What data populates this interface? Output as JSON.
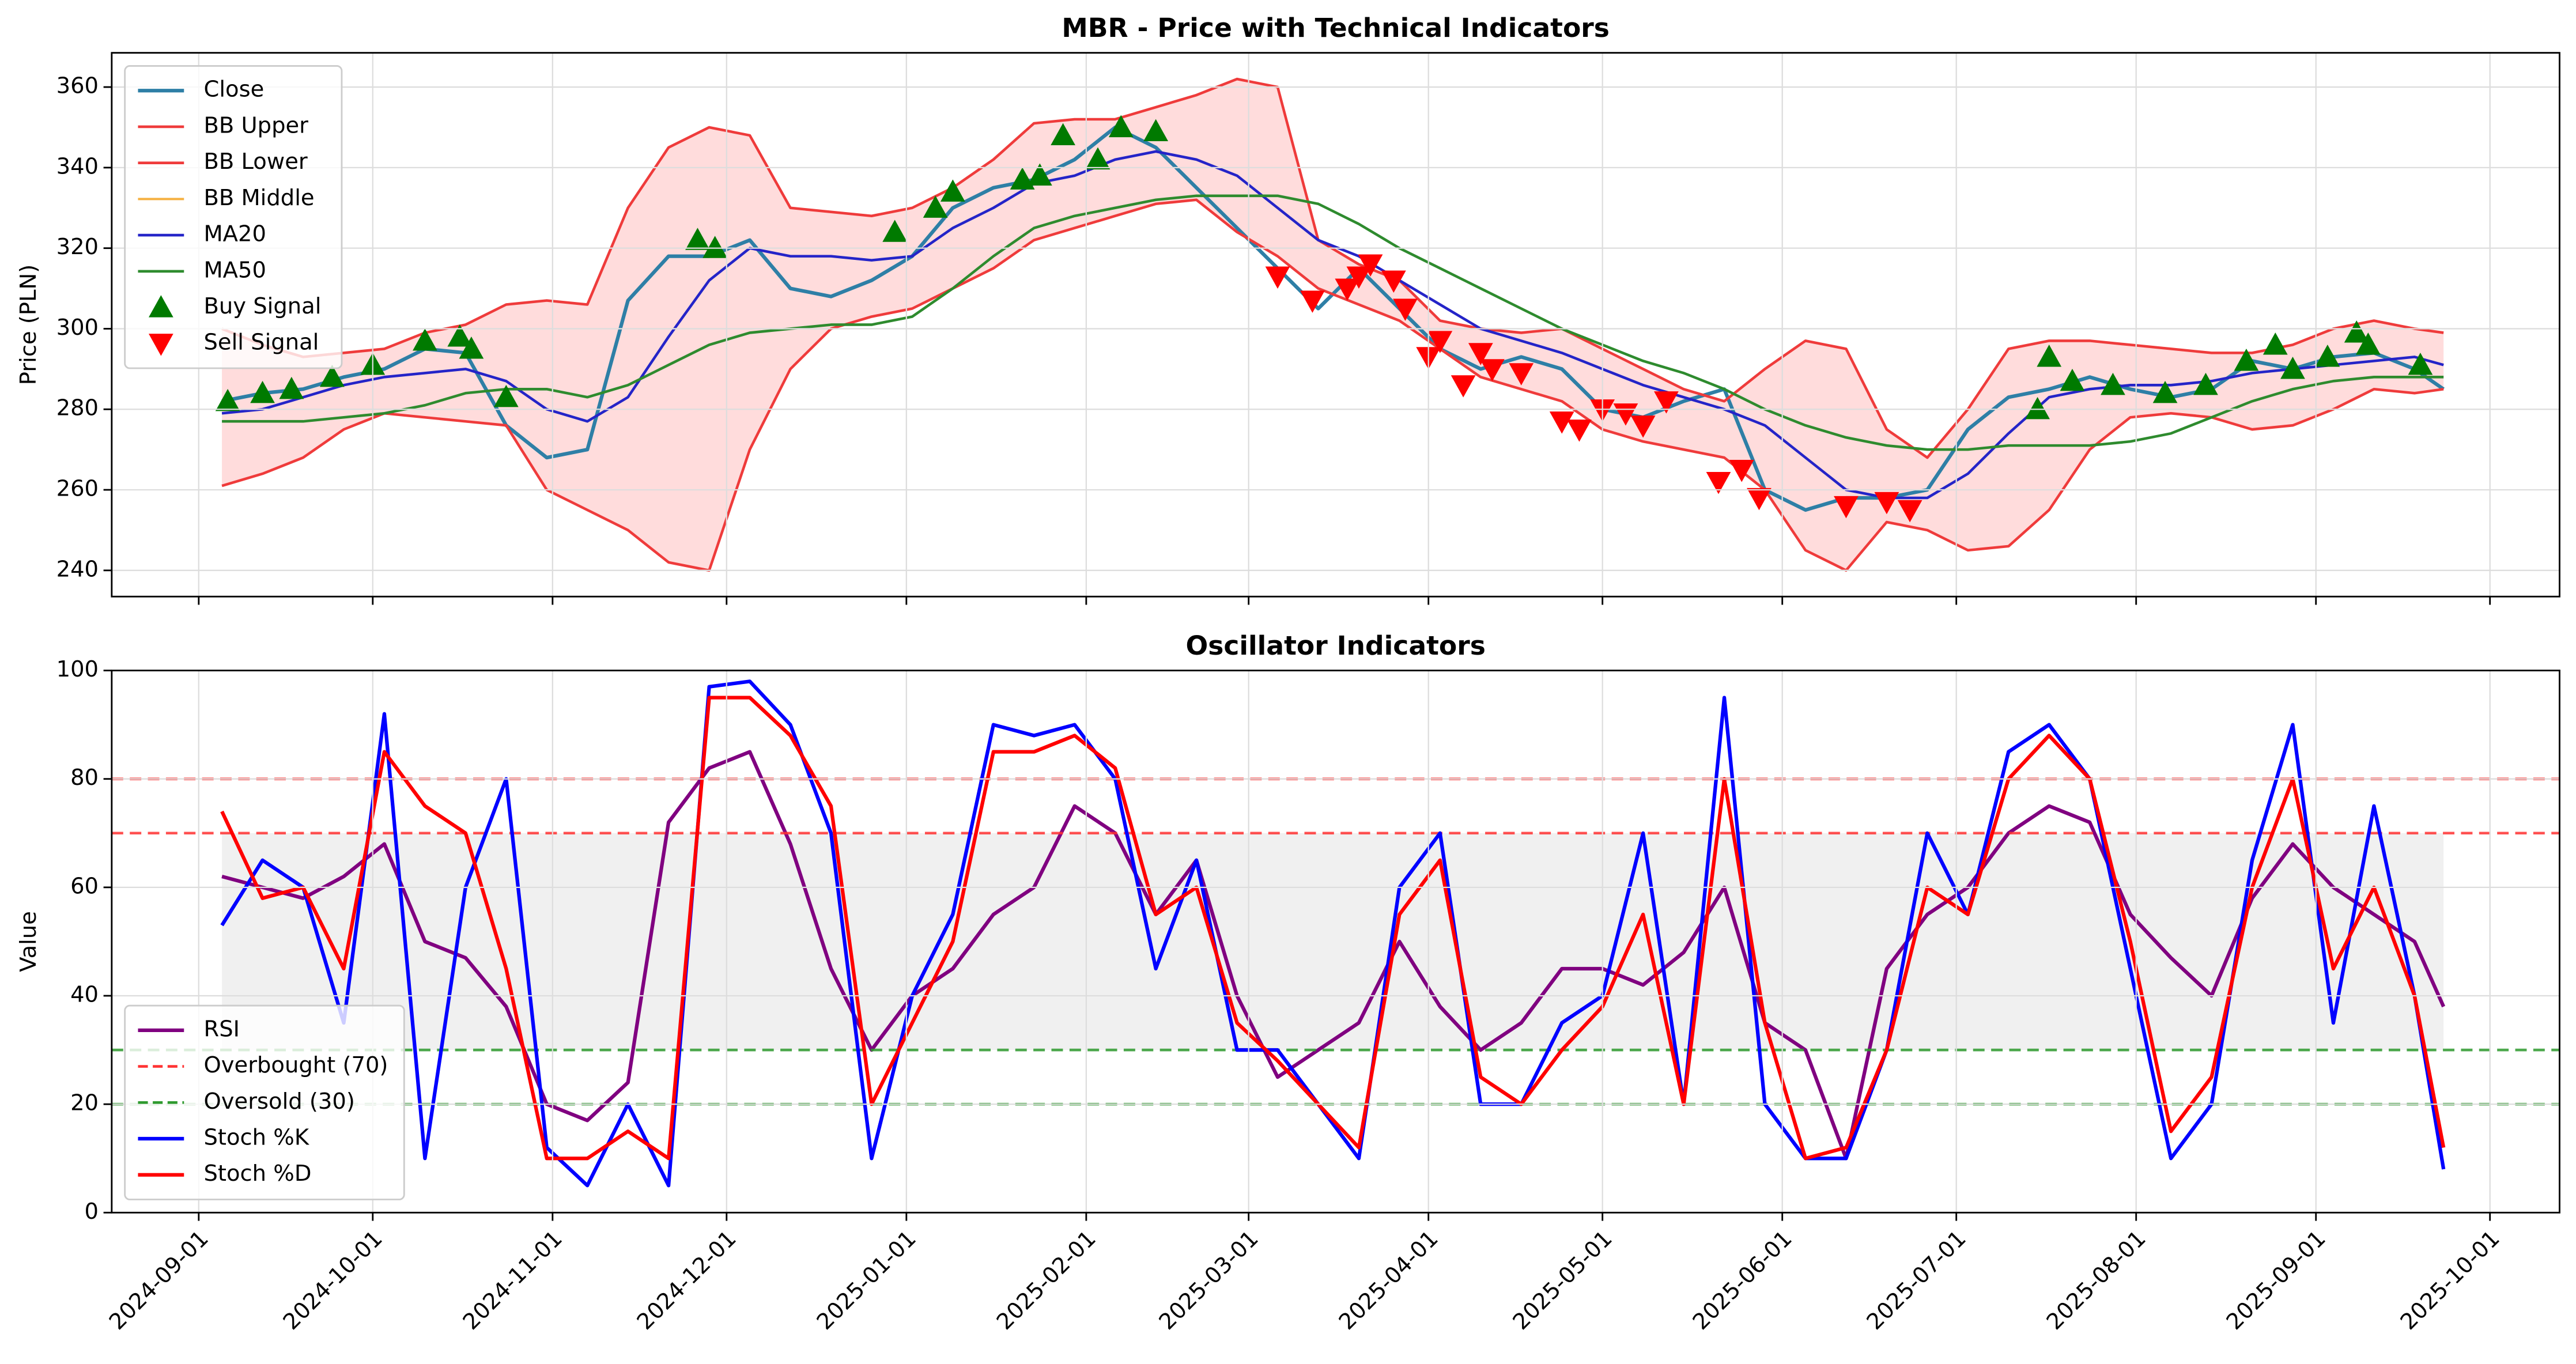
{
  "chart_data": [
    {
      "type": "line",
      "title": "MBR - Price with Technical Indicators",
      "y_label": "Price (PLN)",
      "x": [
        "2024-09-05",
        "2024-09-12",
        "2024-09-19",
        "2024-09-26",
        "2024-10-03",
        "2024-10-10",
        "2024-10-17",
        "2024-10-24",
        "2024-10-31",
        "2024-11-07",
        "2024-11-14",
        "2024-11-21",
        "2024-11-28",
        "2024-12-05",
        "2024-12-12",
        "2024-12-19",
        "2024-12-26",
        "2025-01-02",
        "2025-01-09",
        "2025-01-16",
        "2025-01-23",
        "2025-01-30",
        "2025-02-06",
        "2025-02-13",
        "2025-02-20",
        "2025-02-27",
        "2025-03-06",
        "2025-03-13",
        "2025-03-20",
        "2025-03-27",
        "2025-04-03",
        "2025-04-10",
        "2025-04-17",
        "2025-04-24",
        "2025-05-01",
        "2025-05-08",
        "2025-05-15",
        "2025-05-22",
        "2025-05-29",
        "2025-06-05",
        "2025-06-12",
        "2025-06-19",
        "2025-06-26",
        "2025-07-03",
        "2025-07-10",
        "2025-07-17",
        "2025-07-24",
        "2025-07-31",
        "2025-08-07",
        "2025-08-14",
        "2025-08-21",
        "2025-08-28",
        "2025-09-04",
        "2025-09-11",
        "2025-09-18",
        "2025-09-23"
      ],
      "series": [
        {
          "name": "Close",
          "type": "line",
          "color": "#2e7fa6",
          "width": 2.2,
          "values": [
            282,
            284,
            285,
            288,
            290,
            295,
            294,
            276,
            268,
            270,
            307,
            318,
            318,
            322,
            310,
            308,
            312,
            318,
            330,
            335,
            337,
            342,
            350,
            345,
            335,
            325,
            315,
            305,
            315,
            305,
            295,
            290,
            293,
            290,
            280,
            278,
            282,
            285,
            260,
            255,
            258,
            258,
            260,
            275,
            283,
            285,
            288,
            285,
            283,
            285,
            292,
            290,
            293,
            294,
            290,
            285
          ]
        },
        {
          "name": "BB Upper",
          "type": "line",
          "color": "#ef3b3b",
          "width": 1.6,
          "values": [
            300,
            296,
            293,
            294,
            295,
            299,
            301,
            306,
            307,
            306,
            330,
            345,
            350,
            348,
            330,
            329,
            328,
            330,
            335,
            342,
            351,
            352,
            352,
            355,
            358,
            362,
            360,
            322,
            316,
            312,
            302,
            300,
            299,
            300,
            295,
            290,
            285,
            282,
            290,
            297,
            295,
            275,
            268,
            280,
            295,
            297,
            297,
            296,
            295,
            294,
            294,
            296,
            300,
            302,
            300,
            299
          ]
        },
        {
          "name": "BB Lower",
          "type": "line",
          "color": "#ef3b3b",
          "width": 1.6,
          "values": [
            261,
            264,
            268,
            275,
            279,
            278,
            277,
            276,
            260,
            255,
            250,
            242,
            240,
            270,
            290,
            300,
            303,
            305,
            310,
            315,
            322,
            325,
            328,
            331,
            332,
            324,
            318,
            310,
            306,
            302,
            295,
            288,
            285,
            282,
            275,
            272,
            270,
            268,
            260,
            245,
            240,
            252,
            250,
            245,
            246,
            255,
            270,
            278,
            279,
            278,
            275,
            276,
            280,
            285,
            284,
            285
          ]
        },
        {
          "name": "BB Middle",
          "type": "line",
          "color": "#f5b041",
          "width": 1.4,
          "values": [
            279,
            280,
            283,
            286,
            288,
            289,
            290,
            287,
            280,
            277,
            283,
            298,
            312,
            320,
            318,
            318,
            317,
            318,
            325,
            330,
            336,
            338,
            342,
            344,
            342,
            338,
            330,
            322,
            318,
            312,
            306,
            300,
            297,
            294,
            290,
            286,
            283,
            280,
            276,
            268,
            260,
            258,
            258,
            264,
            274,
            283,
            285,
            286,
            286,
            287,
            289,
            290,
            291,
            292,
            293,
            291
          ]
        },
        {
          "name": "MA20",
          "type": "line",
          "color": "#2424c8",
          "width": 1.6,
          "values": [
            279,
            280,
            283,
            286,
            288,
            289,
            290,
            287,
            280,
            277,
            283,
            298,
            312,
            320,
            318,
            318,
            317,
            318,
            325,
            330,
            336,
            338,
            342,
            344,
            342,
            338,
            330,
            322,
            318,
            312,
            306,
            300,
            297,
            294,
            290,
            286,
            283,
            280,
            276,
            268,
            260,
            258,
            258,
            264,
            274,
            283,
            285,
            286,
            286,
            287,
            289,
            290,
            291,
            292,
            293,
            291
          ]
        },
        {
          "name": "MA50",
          "type": "line",
          "color": "#2e8b2e",
          "width": 1.6,
          "values": [
            277,
            277,
            277,
            278,
            279,
            281,
            284,
            285,
            285,
            283,
            286,
            291,
            296,
            299,
            300,
            301,
            301,
            303,
            310,
            318,
            325,
            328,
            330,
            332,
            333,
            333,
            333,
            331,
            326,
            320,
            315,
            310,
            305,
            300,
            296,
            292,
            289,
            285,
            280,
            276,
            273,
            271,
            270,
            270,
            271,
            271,
            271,
            272,
            274,
            278,
            282,
            285,
            287,
            288,
            288,
            288
          ]
        },
        {
          "name": "Buy Signal",
          "type": "scatter",
          "marker": "up",
          "color": "#007a00",
          "x": [
            "2024-09-06",
            "2024-09-12",
            "2024-09-17",
            "2024-09-24",
            "2024-10-01",
            "2024-10-10",
            "2024-10-16",
            "2024-10-18",
            "2024-10-24",
            "2024-11-26",
            "2024-11-29",
            "2024-12-30",
            "2025-01-06",
            "2025-01-09",
            "2025-01-21",
            "2025-01-24",
            "2025-01-28",
            "2025-02-03",
            "2025-02-07",
            "2025-02-13",
            "2025-07-15",
            "2025-07-17",
            "2025-07-21",
            "2025-07-28",
            "2025-08-06",
            "2025-08-13",
            "2025-08-20",
            "2025-08-25",
            "2025-08-28",
            "2025-09-03",
            "2025-09-08",
            "2025-09-10",
            "2025-09-19"
          ],
          "values": [
            282,
            284,
            285,
            288,
            291,
            297,
            298,
            295,
            283,
            322,
            320,
            324,
            330,
            334,
            337,
            338,
            348,
            342,
            350,
            349,
            280,
            293,
            287,
            286,
            284,
            286,
            292,
            296,
            290,
            293,
            299,
            296,
            291
          ]
        },
        {
          "name": "Sell Signal",
          "type": "scatter",
          "marker": "down",
          "color": "#ff0000",
          "x": [
            "2025-03-06",
            "2025-03-12",
            "2025-03-18",
            "2025-03-20",
            "2025-03-22",
            "2025-03-26",
            "2025-03-28",
            "2025-04-01",
            "2025-04-03",
            "2025-04-07",
            "2025-04-10",
            "2025-04-12",
            "2025-04-17",
            "2025-04-24",
            "2025-04-27",
            "2025-05-01",
            "2025-05-05",
            "2025-05-08",
            "2025-05-12",
            "2025-05-21",
            "2025-05-25",
            "2025-05-28",
            "2025-06-12",
            "2025-06-19",
            "2025-06-23"
          ],
          "values": [
            313,
            307,
            310,
            313,
            316,
            312,
            305,
            293,
            297,
            286,
            294,
            290,
            289,
            277,
            275,
            280,
            279,
            276,
            282,
            262,
            265,
            258,
            256,
            257,
            255
          ]
        }
      ],
      "fill_between": [
        1,
        2
      ],
      "fill_color": "#ffdcdc",
      "xlim": [
        "2024-08-17",
        "2025-10-13"
      ],
      "xticks": [
        "2024-09-01",
        "2024-10-01",
        "2024-11-01",
        "2024-12-01",
        "2025-01-01",
        "2025-02-01",
        "2025-03-01",
        "2025-04-01",
        "2025-05-01",
        "2025-06-01",
        "2025-07-01",
        "2025-08-01",
        "2025-09-01",
        "2025-10-01"
      ],
      "ylim": [
        233.5,
        368.5
      ],
      "yticks": [
        240,
        260,
        280,
        300,
        320,
        340,
        360
      ],
      "grid": true,
      "legend": "upper left"
    },
    {
      "type": "line",
      "title": "Oscillator Indicators",
      "y_label": "Value",
      "x": [
        "2024-09-05",
        "2024-09-12",
        "2024-09-19",
        "2024-09-26",
        "2024-10-03",
        "2024-10-10",
        "2024-10-17",
        "2024-10-24",
        "2024-10-31",
        "2024-11-07",
        "2024-11-14",
        "2024-11-21",
        "2024-11-28",
        "2024-12-05",
        "2024-12-12",
        "2024-12-19",
        "2024-12-26",
        "2025-01-02",
        "2025-01-09",
        "2025-01-16",
        "2025-01-23",
        "2025-01-30",
        "2025-02-06",
        "2025-02-13",
        "2025-02-20",
        "2025-02-27",
        "2025-03-06",
        "2025-03-13",
        "2025-03-20",
        "2025-03-27",
        "2025-04-03",
        "2025-04-10",
        "2025-04-17",
        "2025-04-24",
        "2025-05-01",
        "2025-05-08",
        "2025-05-15",
        "2025-05-22",
        "2025-05-29",
        "2025-06-05",
        "2025-06-12",
        "2025-06-19",
        "2025-06-26",
        "2025-07-03",
        "2025-07-10",
        "2025-07-17",
        "2025-07-24",
        "2025-07-31",
        "2025-08-07",
        "2025-08-14",
        "2025-08-21",
        "2025-08-28",
        "2025-09-04",
        "2025-09-11",
        "2025-09-18",
        "2025-09-23"
      ],
      "series": [
        {
          "name": "RSI",
          "type": "line",
          "color": "#800080",
          "width": 2.2,
          "values": [
            62,
            60,
            58,
            62,
            68,
            50,
            47,
            38,
            20,
            17,
            24,
            72,
            82,
            85,
            68,
            45,
            30,
            40,
            45,
            55,
            60,
            75,
            70,
            55,
            65,
            40,
            25,
            30,
            35,
            50,
            38,
            30,
            35,
            45,
            45,
            42,
            48,
            60,
            35,
            30,
            10,
            45,
            55,
            60,
            70,
            75,
            72,
            55,
            47,
            40,
            58,
            68,
            60,
            55,
            50,
            38
          ]
        },
        {
          "name": "Overbought (70)",
          "type": "hline",
          "value": 70,
          "color": "#ff3333",
          "dashed": true
        },
        {
          "name": "Oversold (30)",
          "type": "hline",
          "value": 30,
          "color": "#2e9a2e",
          "dashed": true
        },
        {
          "name": "Stoch %K",
          "type": "line",
          "color": "#0000ff",
          "width": 2.2,
          "values": [
            53,
            65,
            60,
            35,
            92,
            10,
            60,
            80,
            12,
            5,
            20,
            5,
            97,
            98,
            90,
            70,
            10,
            40,
            55,
            90,
            88,
            90,
            80,
            45,
            65,
            30,
            30,
            20,
            10,
            60,
            70,
            20,
            20,
            35,
            40,
            70,
            20,
            95,
            20,
            10,
            10,
            30,
            70,
            55,
            85,
            90,
            80,
            45,
            10,
            20,
            65,
            90,
            35,
            75,
            40,
            8
          ]
        },
        {
          "name": "Stoch %D",
          "type": "line",
          "color": "#ff0000",
          "width": 2.2,
          "values": [
            74,
            58,
            60,
            45,
            85,
            75,
            70,
            45,
            10,
            10,
            15,
            10,
            95,
            95,
            88,
            75,
            20,
            35,
            50,
            85,
            85,
            88,
            82,
            55,
            60,
            35,
            28,
            20,
            12,
            55,
            65,
            25,
            20,
            30,
            38,
            55,
            20,
            80,
            35,
            10,
            12,
            30,
            60,
            55,
            80,
            88,
            80,
            50,
            15,
            25,
            60,
            80,
            45,
            60,
            40,
            12
          ]
        }
      ],
      "hlines": [
        {
          "value": 80,
          "color": "#ff3333"
        },
        {
          "value": 20,
          "color": "#2e9a2e"
        }
      ],
      "shade": {
        "range": [
          30,
          70
        ],
        "color": "#f0f0f0"
      },
      "xlim": [
        "2024-08-17",
        "2025-10-13"
      ],
      "xticks": [
        "2024-09-01",
        "2024-10-01",
        "2024-11-01",
        "2024-12-01",
        "2025-01-01",
        "2025-02-01",
        "2025-03-01",
        "2025-04-01",
        "2025-05-01",
        "2025-06-01",
        "2025-07-01",
        "2025-08-01",
        "2025-09-01",
        "2025-10-01"
      ],
      "ylim": [
        0,
        100
      ],
      "yticks": [
        0,
        20,
        40,
        60,
        80,
        100
      ],
      "grid": true,
      "legend": "lower left"
    }
  ]
}
